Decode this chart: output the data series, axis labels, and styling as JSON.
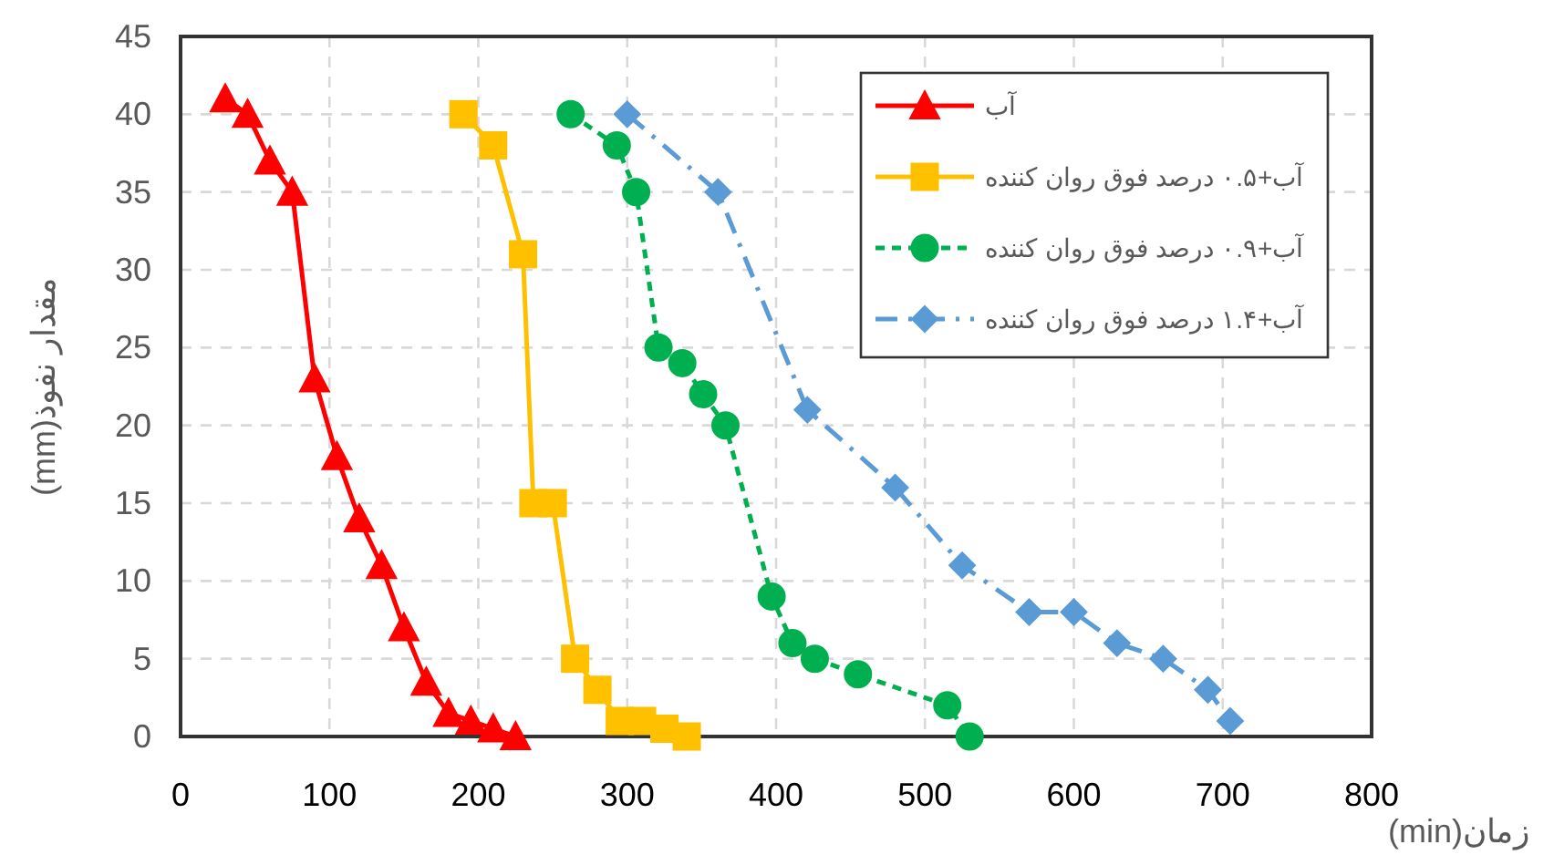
{
  "chart_data": {
    "type": "line",
    "xlabel": "زمان(min)",
    "ylabel": "مقدار نفوذ(mm)",
    "xlim": [
      0,
      800
    ],
    "ylim": [
      0,
      45
    ],
    "xticks": [
      0,
      100,
      200,
      300,
      400,
      500,
      600,
      700,
      800
    ],
    "yticks": [
      0,
      5,
      10,
      15,
      20,
      25,
      30,
      35,
      40,
      45
    ],
    "grid": true,
    "legend": "top right",
    "series": [
      {
        "name": "آب",
        "color": "#ff0000",
        "marker": "triangle",
        "line_style": "solid",
        "x": [
          30,
          45,
          60,
          75,
          90,
          105,
          120,
          135,
          150,
          165,
          180,
          195,
          210,
          225
        ],
        "values": [
          41,
          40,
          37,
          35,
          23,
          18,
          14,
          11,
          7,
          3.5,
          1.5,
          1,
          0.5,
          0
        ]
      },
      {
        "name": "آب+۰.۵ درصد فوق روان کننده",
        "color": "#ffc000",
        "marker": "square",
        "line_style": "solid",
        "x": [
          190,
          210,
          230,
          237,
          250,
          265,
          280,
          295,
          310,
          325,
          340
        ],
        "values": [
          40,
          38,
          31,
          15,
          15,
          5,
          3,
          1,
          1,
          0.5,
          0
        ]
      },
      {
        "name": "آب+۰.۹ درصد فوق روان کننده",
        "color": "#00b050",
        "marker": "circle",
        "line_style": "dashed",
        "x": [
          262,
          293,
          306,
          321,
          337,
          351,
          366,
          397,
          411,
          426,
          455,
          515,
          530
        ],
        "values": [
          40,
          38,
          35,
          25,
          24,
          22,
          20,
          9,
          6,
          5,
          4,
          2,
          0
        ]
      },
      {
        "name": "آب+۱.۴ درصد فوق روان کننده",
        "color": "#5b9bd5",
        "marker": "diamond",
        "line_style": "dashdot",
        "x": [
          300,
          361,
          421,
          480,
          525,
          570,
          600,
          629,
          660,
          690,
          705
        ],
        "values": [
          40,
          35,
          21,
          16,
          11,
          8,
          8,
          6,
          5,
          3,
          1
        ]
      }
    ]
  }
}
